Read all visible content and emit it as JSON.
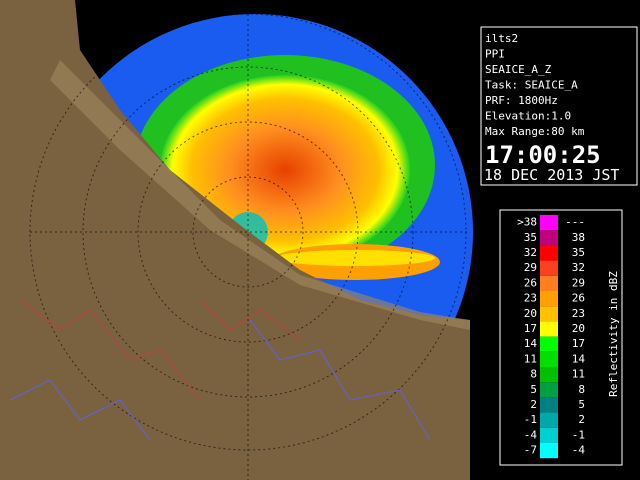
{
  "info_panel": {
    "lines": [
      "ilts2",
      "PPI",
      "SEAICE_A_Z",
      "Task: SEAICE_A",
      "PRF: 1800Hz",
      "Elevation:1.0",
      "Max Range:80 km"
    ],
    "time": "17:00:25",
    "date": "18 DEC 2013 JST"
  },
  "colorbar": {
    "label": "Reflectivity in dBZ",
    "rows": [
      {
        "low": ">38",
        "high": "---",
        "color": "#ff00ff"
      },
      {
        "low": "35",
        "high": "38",
        "color": "#c0007f"
      },
      {
        "low": "32",
        "high": "35",
        "color": "#ff0000"
      },
      {
        "low": "29",
        "high": "32",
        "color": "#ff4020"
      },
      {
        "low": "26",
        "high": "29",
        "color": "#ff7f20"
      },
      {
        "low": "23",
        "high": "26",
        "color": "#ff9f00"
      },
      {
        "low": "20",
        "high": "23",
        "color": "#ffc000"
      },
      {
        "low": "17",
        "high": "20",
        "color": "#ffff00"
      },
      {
        "low": "14",
        "high": "17",
        "color": "#00ff00"
      },
      {
        "low": "11",
        "high": "14",
        "color": "#00e000"
      },
      {
        "low": "8",
        "high": "11",
        "color": "#00c000"
      },
      {
        "low": "5",
        "high": "8",
        "color": "#00a040"
      },
      {
        "low": "2",
        "high": "5",
        "color": "#008080"
      },
      {
        "low": "-1",
        "high": "2",
        "color": "#00a8a8"
      },
      {
        "low": "-4",
        "high": "-1",
        "color": "#00d0d0"
      },
      {
        "low": "-7",
        "high": "-4",
        "color": "#00ffff"
      }
    ]
  }
}
